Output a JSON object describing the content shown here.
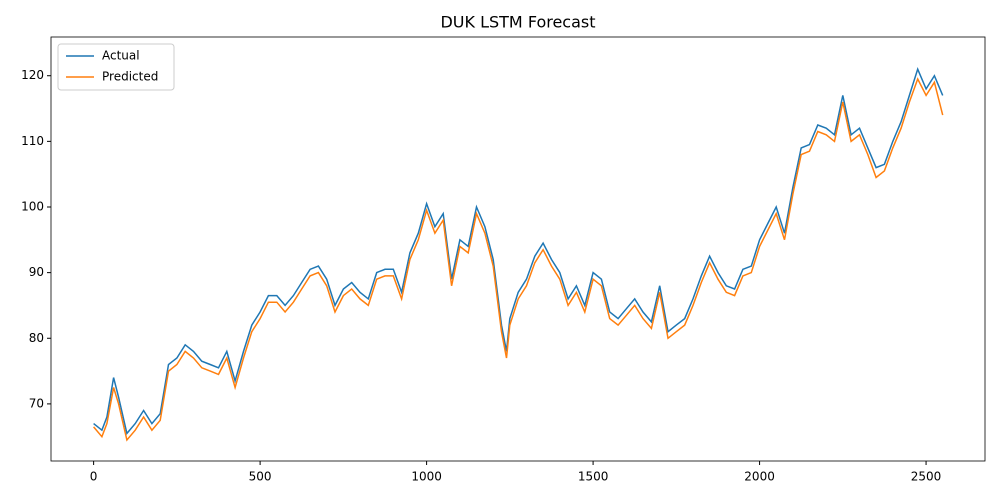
{
  "chart_data": {
    "type": "line",
    "title": "DUK LSTM Forecast",
    "x": [
      0,
      25,
      40,
      60,
      75,
      100,
      125,
      150,
      175,
      200,
      225,
      250,
      275,
      300,
      325,
      350,
      375,
      400,
      425,
      450,
      475,
      500,
      525,
      550,
      575,
      600,
      625,
      650,
      675,
      700,
      725,
      750,
      775,
      800,
      825,
      850,
      875,
      900,
      925,
      950,
      975,
      1000,
      1025,
      1050,
      1075,
      1100,
      1125,
      1150,
      1175,
      1200,
      1225,
      1240,
      1250,
      1275,
      1300,
      1325,
      1350,
      1375,
      1400,
      1425,
      1450,
      1475,
      1500,
      1525,
      1550,
      1575,
      1600,
      1625,
      1650,
      1675,
      1700,
      1725,
      1750,
      1775,
      1800,
      1825,
      1850,
      1875,
      1900,
      1925,
      1950,
      1975,
      2000,
      2025,
      2050,
      2075,
      2100,
      2125,
      2150,
      2175,
      2200,
      2225,
      2250,
      2275,
      2300,
      2325,
      2350,
      2375,
      2400,
      2425,
      2450,
      2475,
      2500,
      2525,
      2550
    ],
    "series": [
      {
        "name": "Actual",
        "color": "#1f77b4",
        "values": [
          67,
          66,
          68,
          74,
          71,
          65.5,
          67,
          69,
          67,
          68.5,
          76,
          77,
          79,
          78,
          76.5,
          76,
          75.5,
          78,
          73.5,
          78,
          82,
          84,
          86.5,
          86.5,
          85,
          86.5,
          88.5,
          90.5,
          91,
          89,
          85,
          87.5,
          88.5,
          87,
          86,
          90,
          90.5,
          90.5,
          87,
          93,
          96,
          100.5,
          97,
          99,
          89,
          95,
          94,
          100,
          97,
          92,
          82,
          78,
          83,
          87,
          89,
          92.5,
          94.5,
          92,
          90,
          86,
          88,
          85,
          90,
          89,
          84,
          83,
          84.5,
          86,
          84,
          82.5,
          88,
          81,
          82,
          83,
          86,
          89.5,
          92.5,
          90,
          88,
          87.5,
          90.5,
          91,
          95,
          97.5,
          100,
          96,
          103,
          109,
          109.5,
          112.5,
          112,
          111,
          117,
          111,
          112,
          109,
          106,
          106.5,
          110,
          113,
          117,
          121,
          118,
          120,
          117
        ]
      },
      {
        "name": "Predicted",
        "color": "#ff7f0e",
        "values": [
          66.5,
          65,
          67,
          72.5,
          70,
          64.5,
          66,
          68,
          66,
          67.5,
          75,
          76,
          78,
          77,
          75.5,
          75,
          74.5,
          77,
          72.5,
          77,
          81,
          83,
          85.5,
          85.5,
          84,
          85.5,
          87.5,
          89.5,
          90,
          88,
          84,
          86.5,
          87.5,
          86,
          85,
          89,
          89.5,
          89.5,
          86,
          92,
          95,
          99.5,
          96,
          98,
          88,
          94,
          93,
          99,
          96,
          91,
          81,
          77,
          82,
          86,
          88,
          91.5,
          93.5,
          91,
          89,
          85,
          87,
          84,
          89,
          88,
          83,
          82,
          83.5,
          85,
          83,
          81.5,
          87,
          80,
          81,
          82,
          85,
          88.5,
          91.5,
          89,
          87,
          86.5,
          89.5,
          90,
          94,
          96.5,
          99,
          95,
          102,
          108,
          108.5,
          111.5,
          111,
          110,
          116,
          110,
          111,
          108,
          104.5,
          105.5,
          109,
          112,
          116,
          119.5,
          117,
          119,
          114
        ]
      }
    ],
    "xlim": [
      -128,
      2677
    ],
    "ylim": [
      61.3,
      125.9
    ],
    "xticks": [
      0,
      500,
      1000,
      1500,
      2000,
      2500
    ],
    "yticks": [
      70,
      80,
      90,
      100,
      110,
      120
    ],
    "legend": "upper left"
  }
}
